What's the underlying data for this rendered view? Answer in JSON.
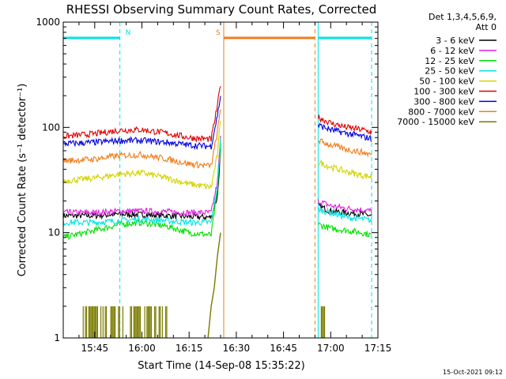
{
  "chart_data": {
    "type": "line",
    "title": "RHESSI Observing Summary Count Rates, Corrected",
    "xlabel": "Start Time (14-Sep-08 15:35:22)",
    "ylabel": "Corrected Count Rate (s⁻¹ detector⁻¹)",
    "yscale": "log",
    "ylim": [
      1,
      1000
    ],
    "xlim": [
      "15:35",
      "17:15"
    ],
    "x_ticks": [
      "15:45",
      "16:00",
      "16:15",
      "16:30",
      "16:45",
      "17:00",
      "17:15"
    ],
    "y_ticks": [
      "1",
      "10",
      "100",
      "1000"
    ],
    "grid": false,
    "legend": {
      "position": "top-right",
      "header": [
        "Det 1,3,4,5,6,9,",
        "Att 0"
      ]
    },
    "footer_timestamp": "15-Oct-2021 09:12",
    "flags": [
      {
        "label": "N",
        "color": "#00e5e5",
        "start": "15:35",
        "end": "15:53"
      },
      {
        "label": "S",
        "color": "#f07d1b",
        "start": "16:26",
        "end": "16:55"
      }
    ],
    "vertical_lines": [
      {
        "time": "15:35",
        "style": "solid",
        "color": "#00e5e5"
      },
      {
        "time": "15:53",
        "style": "dashed",
        "color": "#00e5e5"
      },
      {
        "time": "16:26",
        "style": "solid",
        "color": "#f07d1b"
      },
      {
        "time": "16:55",
        "style": "dashed",
        "color": "#f07d1b"
      },
      {
        "time": "16:56",
        "style": "solid",
        "color": "#00e5e5"
      },
      {
        "time": "17:13",
        "style": "dashed",
        "color": "#00e5e5"
      }
    ],
    "series": [
      {
        "name": "3 - 6 keV",
        "color": "#000000",
        "segments": [
          {
            "x": [
              "15:35",
              "15:45",
              "15:53",
              "16:00",
              "16:08",
              "16:15",
              "16:22",
              "16:24",
              "16:25"
            ],
            "y": [
              14.5,
              14.5,
              15,
              14.8,
              14.5,
              14.2,
              14,
              22,
              60
            ]
          },
          {
            "x": [
              "16:56",
              "17:00",
              "17:05",
              "17:10",
              "17:13"
            ],
            "y": [
              18,
              16,
              15.5,
              15,
              14.5
            ]
          }
        ]
      },
      {
        "name": "6 - 12 keV",
        "color": "#e020e0",
        "segments": [
          {
            "x": [
              "15:35",
              "15:45",
              "15:53",
              "16:00",
              "16:08",
              "16:15",
              "16:22",
              "16:24",
              "16:25"
            ],
            "y": [
              15.5,
              15.5,
              16,
              16,
              15.8,
              15.5,
              15.5,
              30,
              80
            ]
          },
          {
            "x": [
              "16:56",
              "17:00",
              "17:05",
              "17:10",
              "17:13"
            ],
            "y": [
              20,
              18,
              17,
              16.5,
              16
            ]
          }
        ]
      },
      {
        "name": "12 - 25 keV",
        "color": "#00e000",
        "segments": [
          {
            "x": [
              "15:35",
              "15:45",
              "15:53",
              "16:00",
              "16:08",
              "16:15",
              "16:22",
              "16:24",
              "16:25"
            ],
            "y": [
              9,
              10.5,
              12,
              12.5,
              11.5,
              10,
              9.5,
              25,
              70
            ]
          },
          {
            "x": [
              "16:56",
              "17:00",
              "17:05",
              "17:10",
              "17:13"
            ],
            "y": [
              12,
              11,
              10.5,
              10,
              9.5
            ]
          }
        ]
      },
      {
        "name": "25 - 50 keV",
        "color": "#00e5e5",
        "segments": [
          {
            "x": [
              "15:35",
              "15:45",
              "15:53",
              "16:00",
              "16:08",
              "16:15",
              "16:22",
              "16:24",
              "16:25"
            ],
            "y": [
              12.5,
              12.5,
              13,
              13.5,
              13,
              12.5,
              12.5,
              28,
              75
            ]
          },
          {
            "x": [
              "16:56",
              "17:00",
              "17:05",
              "17:10",
              "17:13"
            ],
            "y": [
              16.5,
              15.5,
              14,
              13.5,
              13
            ]
          }
        ]
      },
      {
        "name": "50 - 100 keV",
        "color": "#d4d400",
        "segments": [
          {
            "x": [
              "15:35",
              "15:45",
              "15:53",
              "16:00",
              "16:08",
              "16:15",
              "16:22",
              "16:24",
              "16:25"
            ],
            "y": [
              31,
              33,
              36,
              37,
              33,
              29,
              27,
              55,
              120
            ]
          },
          {
            "x": [
              "16:56",
              "17:00",
              "17:05",
              "17:10",
              "17:13"
            ],
            "y": [
              47,
              42,
              38,
              35,
              34
            ]
          }
        ]
      },
      {
        "name": "100 - 300 keV",
        "color": "#e00000",
        "segments": [
          {
            "x": [
              "15:35",
              "15:45",
              "15:53",
              "16:00",
              "16:08",
              "16:15",
              "16:22",
              "16:24",
              "16:25"
            ],
            "y": [
              82,
              87,
              94,
              95,
              88,
              80,
              77,
              160,
              260
            ]
          },
          {
            "x": [
              "16:56",
              "17:00",
              "17:05",
              "17:10",
              "17:13"
            ],
            "y": [
              125,
              110,
              100,
              95,
              90
            ]
          }
        ]
      },
      {
        "name": "300 - 800 keV",
        "color": "#0000e0",
        "segments": [
          {
            "x": [
              "15:35",
              "15:45",
              "15:53",
              "16:00",
              "16:08",
              "16:15",
              "16:22",
              "16:24",
              "16:25"
            ],
            "y": [
              70,
              72,
              75,
              75,
              72,
              68,
              66,
              130,
              200
            ]
          },
          {
            "x": [
              "16:56",
              "17:00",
              "17:05",
              "17:10",
              "17:13"
            ],
            "y": [
              105,
              95,
              88,
              82,
              78
            ]
          }
        ]
      },
      {
        "name": "800 - 7000 keV",
        "color": "#f07d1b",
        "segments": [
          {
            "x": [
              "15:35",
              "15:45",
              "15:53",
              "16:00",
              "16:08",
              "16:15",
              "16:22",
              "16:24",
              "16:25"
            ],
            "y": [
              48,
              50,
              54,
              55,
              50,
              45,
              43,
              90,
              150
            ]
          },
          {
            "x": [
              "16:56",
              "17:00",
              "17:05",
              "17:10",
              "17:13"
            ],
            "y": [
              75,
              68,
              62,
              58,
              55
            ]
          }
        ]
      },
      {
        "name": "7000 - 15000 keV",
        "color": "#7a7a00",
        "segments": [
          {
            "x": [
              "16:21",
              "16:22",
              "16:23",
              "16:24",
              "16:25"
            ],
            "y": [
              1,
              2,
              3,
              6,
              10
            ]
          }
        ]
      }
    ]
  }
}
